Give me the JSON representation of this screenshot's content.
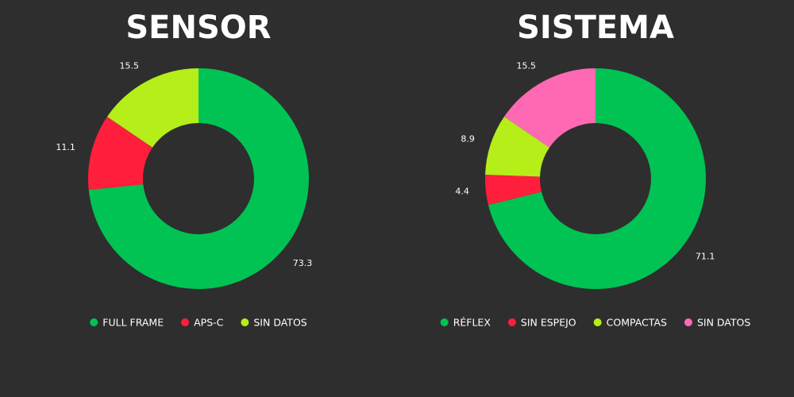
{
  "chart_data": [
    {
      "type": "pie",
      "title": "SENSOR",
      "categories": [
        "FULL FRAME",
        "APS-C",
        "SIN DATOS"
      ],
      "values": [
        73.3,
        11.1,
        15.5
      ],
      "colors": [
        "#00c353",
        "#ff1f3c",
        "#b5ee19"
      ]
    },
    {
      "type": "pie",
      "title": "SISTEMA",
      "categories": [
        "RÉFLEX",
        "SIN ESPEJO",
        "COMPACTAS",
        "SIN DATOS"
      ],
      "values": [
        71.1,
        4.4,
        8.9,
        15.5
      ],
      "colors": [
        "#00c353",
        "#ff1f3c",
        "#b5ee19",
        "#ff69b4"
      ]
    }
  ]
}
